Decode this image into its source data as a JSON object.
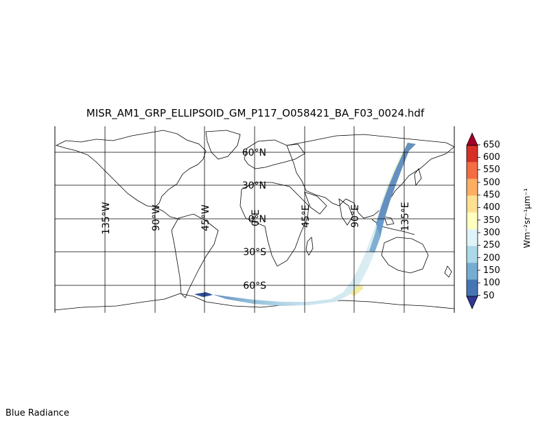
{
  "title": "MISR_AM1_GRP_ELLIPSOID_GM_P117_O058421_BA_F03_0024.hdf",
  "caption": "Blue Radiance",
  "map": {
    "projection": "equirectangular",
    "lon_range": [
      -180,
      180
    ],
    "lat_range": [
      -90,
      90
    ],
    "lat_labels": [
      "60°N",
      "30°N",
      "0°N",
      "30°S",
      "60°S"
    ],
    "lon_labels": [
      "135°W",
      "90°W",
      "45°W",
      "0°E",
      "45°E",
      "90°E",
      "135°E"
    ]
  },
  "colorbar": {
    "unit": "Wm⁻²sr⁻¹μm⁻¹",
    "ticks": [
      "650",
      "600",
      "550",
      "500",
      "450",
      "400",
      "350",
      "300",
      "250",
      "200",
      "150",
      "100",
      "50"
    ],
    "colors": [
      "#313695",
      "#4575b4",
      "#74add1",
      "#abd9e9",
      "#e0f3f8",
      "#ffffbf",
      "#fee090",
      "#fdae61",
      "#f46d43",
      "#d73027",
      "#a50026"
    ]
  }
}
